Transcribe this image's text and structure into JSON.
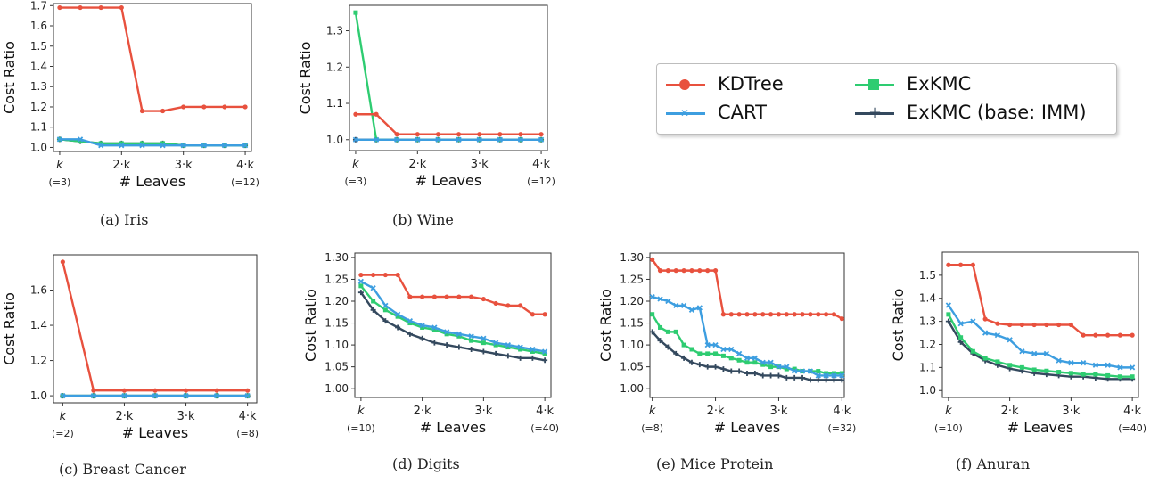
{
  "series_styles": [
    {
      "key": "kdtree",
      "color": "#e8513e",
      "marker": "circle"
    },
    {
      "key": "cart",
      "color": "#3d9ee0",
      "marker": "x"
    },
    {
      "key": "exkmc",
      "color": "#2ecc71",
      "marker": "square"
    },
    {
      "key": "imm",
      "color": "#34495e",
      "marker": "plus"
    }
  ],
  "legend": {
    "placement": "top-right",
    "items": [
      {
        "label": "KDTree",
        "color": "#e8513e",
        "marker": "circle"
      },
      {
        "label": "ExKMC",
        "color": "#2ecc71",
        "marker": "square"
      },
      {
        "label": "CART",
        "color": "#3d9ee0",
        "marker": "x"
      },
      {
        "label": "ExKMC (base: IMM)",
        "color": "#34495e",
        "marker": "plus"
      }
    ]
  },
  "captions": [
    "(a) Iris",
    "(b) Wine",
    "(c) Breast Cancer",
    "(d) Digits",
    "(e) Mice Protein",
    "(f) Anuran"
  ],
  "chart_data": [
    {
      "type": "line",
      "ylabel": "Cost Ratio",
      "xlabel": "# Leaves",
      "ylim": [
        0.98,
        1.71
      ],
      "yticks": [
        "1.0",
        "1.1",
        "1.2",
        "1.3",
        "1.4",
        "1.5",
        "1.6",
        "1.7"
      ],
      "ytick_values": [
        1.0,
        1.1,
        1.2,
        1.3,
        1.4,
        1.5,
        1.6,
        1.7
      ],
      "xticks": [
        "k",
        "2·k",
        "3·k",
        "4·k"
      ],
      "xtick_values": [
        3,
        6,
        9,
        12
      ],
      "xlim": [
        2.7,
        12.3
      ],
      "xsub_first": "(=3)",
      "xsub_last": "(=12)",
      "grid": false,
      "x": [
        3,
        4,
        5,
        6,
        7,
        8,
        9,
        10,
        11,
        12
      ],
      "series": [
        {
          "key": "kdtree",
          "values": [
            1.69,
            1.69,
            1.69,
            1.69,
            1.18,
            1.18,
            1.2,
            1.2,
            1.2,
            1.2
          ]
        },
        {
          "key": "cart",
          "values": [
            1.04,
            1.04,
            1.01,
            1.01,
            1.01,
            1.01,
            1.01,
            1.01,
            1.01,
            1.01
          ]
        },
        {
          "key": "exkmc",
          "values": [
            1.04,
            1.03,
            1.02,
            1.02,
            1.02,
            1.02,
            1.01,
            1.01,
            1.01,
            1.01
          ]
        },
        {
          "key": "imm",
          "values": [
            1.04,
            1.03,
            1.02,
            1.02,
            1.02,
            1.02,
            1.01,
            1.01,
            1.01,
            1.01
          ]
        }
      ]
    },
    {
      "type": "line",
      "ylabel": "Cost Ratio",
      "xlabel": "# Leaves",
      "ylim": [
        0.97,
        1.37
      ],
      "yticks": [
        "1.0",
        "1.1",
        "1.2",
        "1.3"
      ],
      "ytick_values": [
        1.0,
        1.1,
        1.2,
        1.3
      ],
      "xticks": [
        "k",
        "2·k",
        "3·k",
        "4·k"
      ],
      "xtick_values": [
        3,
        6,
        9,
        12
      ],
      "xlim": [
        2.7,
        12.3
      ],
      "xsub_first": "(=3)",
      "xsub_last": "(=12)",
      "grid": false,
      "x": [
        3,
        4,
        5,
        6,
        7,
        8,
        9,
        10,
        11,
        12
      ],
      "series": [
        {
          "key": "kdtree",
          "values": [
            1.07,
            1.07,
            1.015,
            1.015,
            1.015,
            1.015,
            1.015,
            1.015,
            1.015,
            1.015
          ]
        },
        {
          "key": "cart",
          "values": [
            1.0,
            1.0,
            1.0,
            1.0,
            1.0,
            1.0,
            1.0,
            1.0,
            1.0,
            1.0
          ]
        },
        {
          "key": "exkmc",
          "values": [
            1.35,
            1.0,
            1.0,
            1.0,
            1.0,
            1.0,
            1.0,
            1.0,
            1.0,
            1.0
          ]
        },
        {
          "key": "imm",
          "values": [
            1.0,
            1.0,
            1.0,
            1.0,
            1.0,
            1.0,
            1.0,
            1.0,
            1.0,
            1.0
          ]
        }
      ]
    },
    {
      "type": "line",
      "ylabel": "Cost Ratio",
      "xlabel": "# Leaves",
      "ylim": [
        0.96,
        1.8
      ],
      "yticks": [
        "1.0",
        "1.2",
        "1.4",
        "1.6"
      ],
      "ytick_values": [
        1.0,
        1.2,
        1.4,
        1.6
      ],
      "xticks": [
        "k",
        "2·k",
        "3·k",
        "4·k"
      ],
      "xtick_values": [
        2,
        4,
        6,
        8
      ],
      "xlim": [
        1.7,
        8.3
      ],
      "xsub_first": "(=2)",
      "xsub_last": "(=8)",
      "grid": false,
      "x": [
        2,
        3,
        4,
        5,
        6,
        7,
        8
      ],
      "series": [
        {
          "key": "kdtree",
          "values": [
            1.76,
            1.03,
            1.03,
            1.03,
            1.03,
            1.03,
            1.03
          ]
        },
        {
          "key": "cart",
          "values": [
            1.0,
            1.0,
            1.0,
            1.0,
            1.0,
            1.0,
            1.0
          ]
        },
        {
          "key": "exkmc",
          "values": [
            1.0,
            1.0,
            1.0,
            1.0,
            1.0,
            1.0,
            1.0
          ]
        },
        {
          "key": "imm",
          "values": [
            1.0,
            1.0,
            1.0,
            1.0,
            1.0,
            1.0,
            1.0
          ]
        }
      ]
    },
    {
      "type": "line",
      "ylabel": "Cost Ratio",
      "xlabel": "# Leaves",
      "ylim": [
        0.98,
        1.31
      ],
      "yticks": [
        "1.00",
        "1.05",
        "1.10",
        "1.15",
        "1.20",
        "1.25",
        "1.30"
      ],
      "ytick_values": [
        1.0,
        1.05,
        1.1,
        1.15,
        1.2,
        1.25,
        1.3
      ],
      "xticks": [
        "k",
        "2·k",
        "3·k",
        "4·k"
      ],
      "xtick_values": [
        10,
        20,
        30,
        40
      ],
      "xlim": [
        9,
        41
      ],
      "xsub_first": "(=10)",
      "xsub_last": "(=40)",
      "grid": false,
      "x": [
        10,
        12,
        14,
        16,
        18,
        20,
        22,
        24,
        26,
        28,
        30,
        32,
        34,
        36,
        38,
        40
      ],
      "series": [
        {
          "key": "kdtree",
          "values": [
            1.26,
            1.26,
            1.26,
            1.26,
            1.21,
            1.21,
            1.21,
            1.21,
            1.21,
            1.21,
            1.205,
            1.195,
            1.19,
            1.19,
            1.17,
            1.17
          ]
        },
        {
          "key": "cart",
          "values": [
            1.245,
            1.23,
            1.19,
            1.17,
            1.155,
            1.145,
            1.14,
            1.13,
            1.125,
            1.12,
            1.115,
            1.105,
            1.1,
            1.095,
            1.09,
            1.085
          ]
        },
        {
          "key": "exkmc",
          "values": [
            1.235,
            1.2,
            1.18,
            1.165,
            1.15,
            1.14,
            1.135,
            1.125,
            1.12,
            1.11,
            1.105,
            1.1,
            1.095,
            1.09,
            1.085,
            1.08
          ]
        },
        {
          "key": "imm",
          "values": [
            1.22,
            1.18,
            1.155,
            1.14,
            1.125,
            1.115,
            1.105,
            1.1,
            1.095,
            1.09,
            1.085,
            1.08,
            1.075,
            1.07,
            1.07,
            1.065
          ]
        }
      ]
    },
    {
      "type": "line",
      "ylabel": "Cost Ratio",
      "xlabel": "# Leaves",
      "ylim": [
        0.98,
        1.31
      ],
      "yticks": [
        "1.00",
        "1.05",
        "1.10",
        "1.15",
        "1.20",
        "1.25",
        "1.30"
      ],
      "ytick_values": [
        1.0,
        1.05,
        1.1,
        1.15,
        1.2,
        1.25,
        1.3
      ],
      "xticks": [
        "k",
        "2·k",
        "3·k",
        "4·k"
      ],
      "xtick_values": [
        8,
        16,
        24,
        32
      ],
      "xlim": [
        7.7,
        32.3
      ],
      "xsub_first": "(=8)",
      "xsub_last": "(=32)",
      "grid": false,
      "x": [
        8,
        9,
        10,
        11,
        12,
        13,
        14,
        15,
        16,
        17,
        18,
        19,
        20,
        21,
        22,
        23,
        24,
        25,
        26,
        27,
        28,
        29,
        30,
        31,
        32
      ],
      "series": [
        {
          "key": "kdtree",
          "values": [
            1.295,
            1.27,
            1.27,
            1.27,
            1.27,
            1.27,
            1.27,
            1.27,
            1.27,
            1.17,
            1.17,
            1.17,
            1.17,
            1.17,
            1.17,
            1.17,
            1.17,
            1.17,
            1.17,
            1.17,
            1.17,
            1.17,
            1.17,
            1.17,
            1.16
          ]
        },
        {
          "key": "cart",
          "values": [
            1.21,
            1.205,
            1.2,
            1.19,
            1.19,
            1.18,
            1.185,
            1.1,
            1.1,
            1.09,
            1.09,
            1.08,
            1.07,
            1.07,
            1.06,
            1.06,
            1.05,
            1.05,
            1.04,
            1.04,
            1.04,
            1.03,
            1.03,
            1.03,
            1.03
          ]
        },
        {
          "key": "exkmc",
          "values": [
            1.17,
            1.14,
            1.13,
            1.13,
            1.1,
            1.09,
            1.08,
            1.08,
            1.08,
            1.075,
            1.07,
            1.065,
            1.06,
            1.06,
            1.055,
            1.05,
            1.05,
            1.045,
            1.045,
            1.04,
            1.04,
            1.04,
            1.035,
            1.035,
            1.035
          ]
        },
        {
          "key": "imm",
          "values": [
            1.13,
            1.11,
            1.095,
            1.08,
            1.07,
            1.06,
            1.055,
            1.05,
            1.05,
            1.045,
            1.04,
            1.04,
            1.035,
            1.035,
            1.03,
            1.03,
            1.03,
            1.025,
            1.025,
            1.025,
            1.02,
            1.02,
            1.02,
            1.02,
            1.02
          ]
        }
      ]
    },
    {
      "type": "line",
      "ylabel": "Cost Ratio",
      "xlabel": "# Leaves",
      "ylim": [
        0.97,
        1.6
      ],
      "yticks": [
        "1.0",
        "1.1",
        "1.2",
        "1.3",
        "1.4",
        "1.5"
      ],
      "ytick_values": [
        1.0,
        1.1,
        1.2,
        1.3,
        1.4,
        1.5
      ],
      "xticks": [
        "k",
        "2·k",
        "3·k",
        "4·k"
      ],
      "xtick_values": [
        10,
        20,
        30,
        40
      ],
      "xlim": [
        9,
        41
      ],
      "xsub_first": "(=10)",
      "xsub_last": "(=40)",
      "grid": false,
      "x": [
        10,
        12,
        14,
        16,
        18,
        20,
        22,
        24,
        26,
        28,
        30,
        32,
        34,
        36,
        38,
        40
      ],
      "series": [
        {
          "key": "kdtree",
          "values": [
            1.545,
            1.545,
            1.545,
            1.31,
            1.29,
            1.285,
            1.285,
            1.285,
            1.285,
            1.285,
            1.285,
            1.24,
            1.24,
            1.24,
            1.24,
            1.24
          ]
        },
        {
          "key": "cart",
          "values": [
            1.37,
            1.29,
            1.3,
            1.25,
            1.24,
            1.22,
            1.17,
            1.16,
            1.16,
            1.13,
            1.12,
            1.12,
            1.11,
            1.11,
            1.1,
            1.1
          ]
        },
        {
          "key": "exkmc",
          "values": [
            1.33,
            1.23,
            1.17,
            1.14,
            1.125,
            1.11,
            1.1,
            1.09,
            1.085,
            1.08,
            1.075,
            1.07,
            1.07,
            1.065,
            1.06,
            1.06
          ]
        },
        {
          "key": "imm",
          "values": [
            1.3,
            1.21,
            1.16,
            1.13,
            1.11,
            1.095,
            1.085,
            1.075,
            1.07,
            1.065,
            1.06,
            1.06,
            1.055,
            1.05,
            1.05,
            1.05
          ]
        }
      ]
    }
  ]
}
